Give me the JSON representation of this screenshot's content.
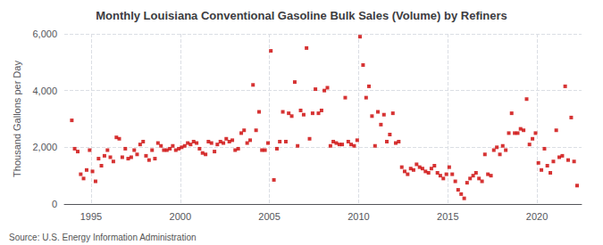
{
  "chart_data": {
    "type": "scatter",
    "title": "Monthly Louisiana Conventional Gasoline Bulk Sales (Volume) by Refiners",
    "ylabel": "Thousand Gallons per Day",
    "annotation": "Source: U.S. Energy Information Administration",
    "color": "#cc0000",
    "marker": "square",
    "grid": true,
    "xlim": [
      1993.5,
      2022.5
    ],
    "xticks": [
      1995,
      2000,
      2005,
      2010,
      2015,
      2020
    ],
    "ylim": [
      0,
      6000
    ],
    "yticks": [
      0,
      {
        "value": 2000,
        "label": "2,000"
      },
      {
        "value": 4000,
        "label": "4,000"
      },
      {
        "value": 6000,
        "label": "6,000"
      }
    ],
    "x": [
      1993.92,
      1994.08,
      1994.25,
      1994.42,
      1994.58,
      1994.75,
      1994.92,
      1995.08,
      1995.25,
      1995.42,
      1995.58,
      1995.75,
      1995.92,
      1996.08,
      1996.25,
      1996.42,
      1996.58,
      1996.75,
      1996.92,
      1997.08,
      1997.25,
      1997.42,
      1997.58,
      1997.75,
      1997.92,
      1998.08,
      1998.25,
      1998.42,
      1998.58,
      1998.75,
      1998.92,
      1999.08,
      1999.25,
      1999.42,
      1999.58,
      1999.75,
      1999.92,
      2000.08,
      2000.25,
      2000.42,
      2000.58,
      2000.75,
      2000.92,
      2001.08,
      2001.25,
      2001.42,
      2001.58,
      2001.75,
      2001.92,
      2002.08,
      2002.25,
      2002.42,
      2002.58,
      2002.75,
      2002.92,
      2003.08,
      2003.25,
      2003.42,
      2003.58,
      2003.75,
      2003.92,
      2004.08,
      2004.25,
      2004.42,
      2004.58,
      2004.75,
      2004.92,
      2005.08,
      2005.25,
      2005.42,
      2005.58,
      2005.75,
      2005.92,
      2006.08,
      2006.25,
      2006.42,
      2006.58,
      2006.75,
      2006.92,
      2007.08,
      2007.25,
      2007.42,
      2007.58,
      2007.75,
      2007.92,
      2008.08,
      2008.25,
      2008.42,
      2008.58,
      2008.75,
      2008.92,
      2009.08,
      2009.25,
      2009.42,
      2009.58,
      2009.75,
      2009.92,
      2010.08,
      2010.25,
      2010.42,
      2010.58,
      2010.75,
      2010.92,
      2011.08,
      2011.25,
      2011.42,
      2011.58,
      2011.75,
      2011.92,
      2012.08,
      2012.25,
      2012.42,
      2012.58,
      2012.75,
      2012.92,
      2013.08,
      2013.25,
      2013.42,
      2013.58,
      2013.75,
      2013.92,
      2014.08,
      2014.25,
      2014.42,
      2014.58,
      2014.75,
      2014.92,
      2015.08,
      2015.25,
      2015.42,
      2015.58,
      2015.75,
      2015.92,
      2016.08,
      2016.25,
      2016.42,
      2016.58,
      2016.75,
      2016.92,
      2017.08,
      2017.25,
      2017.42,
      2017.58,
      2017.75,
      2017.92,
      2018.08,
      2018.25,
      2018.42,
      2018.58,
      2018.75,
      2018.92,
      2019.08,
      2019.25,
      2019.42,
      2019.58,
      2019.75,
      2019.92,
      2020.08,
      2020.25,
      2020.42,
      2020.58,
      2020.75,
      2020.92,
      2021.08,
      2021.25,
      2021.42,
      2021.58,
      2021.75,
      2021.92,
      2022.08,
      2022.25
    ],
    "values": [
      2950,
      1950,
      1850,
      1050,
      900,
      1200,
      1900,
      1150,
      800,
      1600,
      1350,
      1700,
      1900,
      1650,
      1500,
      2350,
      2300,
      1650,
      1950,
      1600,
      1650,
      1900,
      1750,
      2100,
      2200,
      1700,
      1550,
      1900,
      1600,
      2150,
      2050,
      1900,
      1900,
      1950,
      2050,
      1900,
      1950,
      2000,
      2050,
      2150,
      2100,
      2200,
      2150,
      1950,
      1800,
      1750,
      2200,
      2150,
      1850,
      2100,
      2200,
      2150,
      2300,
      2200,
      2250,
      1900,
      1950,
      2500,
      2600,
      2150,
      2250,
      4200,
      2600,
      3250,
      1900,
      1900,
      2150,
      5400,
      850,
      1950,
      2200,
      3250,
      2200,
      3200,
      3100,
      4300,
      2050,
      3300,
      3150,
      5500,
      2300,
      3200,
      4050,
      3200,
      3300,
      4000,
      4100,
      2050,
      2200,
      2150,
      2100,
      2100,
      3750,
      2200,
      2100,
      2050,
      2250,
      5900,
      4900,
      3750,
      4150,
      3100,
      2050,
      3250,
      2800,
      3150,
      2200,
      2450,
      3200,
      2150,
      2200,
      1300,
      1150,
      1050,
      1250,
      1200,
      1400,
      1300,
      1250,
      1150,
      1100,
      1250,
      1350,
      1100,
      1000,
      900,
      1050,
      1300,
      1050,
      800,
      500,
      350,
      200,
      750,
      900,
      1000,
      1100,
      900,
      800,
      1750,
      1050,
      1000,
      1900,
      2000,
      1750,
      2050,
      1900,
      2500,
      3200,
      2500,
      2500,
      2650,
      2600,
      3700,
      2100,
      2300,
      2500,
      1450,
      1200,
      1950,
      1350,
      1100,
      1500,
      2600,
      1650,
      1700,
      4150,
      1550,
      3050,
      1500,
      650
    ]
  }
}
